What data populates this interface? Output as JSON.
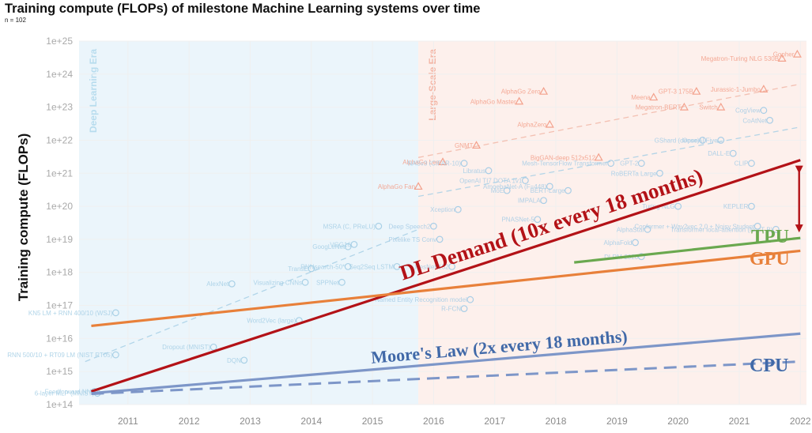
{
  "header": {
    "title": "Training compute (FLOPs) of milestone Machine Learning systems over time",
    "subtitle": "n = 102"
  },
  "chart_data": {
    "type": "scatter",
    "title": "Training compute (FLOPs) of milestone Machine Learning systems over time",
    "ylabel": "Training compute (FLOPs)",
    "xlabel": "",
    "y_scale": "log",
    "xlim": [
      2010.2,
      2022.1
    ],
    "ylim": [
      100000000000000.0,
      1e+25
    ],
    "x_ticks": [
      "2011",
      "2012",
      "2013",
      "2014",
      "2015",
      "2016",
      "2017",
      "2018",
      "2019",
      "2020",
      "2021",
      "2022"
    ],
    "y_ticks": [
      "1e+14",
      "1e+15",
      "1e+16",
      "1e+17",
      "1e+18",
      "1e+19",
      "1e+20",
      "1e+21",
      "1e+22",
      "1e+23",
      "1e+24",
      "1e+25"
    ],
    "eras": [
      {
        "name": "Deep Learning Era",
        "x_start": 2010.2,
        "x_end": 2015.75,
        "color": "#ebf5fb"
      },
      {
        "name": "Large-Scale Era",
        "x_start": 2015.75,
        "x_end": 2022.1,
        "color": "#fdf0ec"
      }
    ],
    "trend_lines": [
      {
        "label": "DL Demand (10x every 18 months)",
        "color": "#b31217",
        "style": "solid",
        "points": [
          [
            2010.4,
            250000000000000.0
          ],
          [
            2022,
            2.5e+21
          ]
        ]
      },
      {
        "label": "GPU",
        "color": "#e8803a",
        "style": "solid",
        "points": [
          [
            2010.4,
            2.4e+16
          ],
          [
            2022,
            4.5e+18
          ]
        ]
      },
      {
        "label": "TPU",
        "color": "#6aa84f",
        "style": "solid",
        "points": [
          [
            2018.3,
            2e+18
          ],
          [
            2022,
            1.1e+19
          ]
        ]
      },
      {
        "label": "Moore's Law (2x every 18 months)",
        "color": "#7d96c8",
        "style": "solid",
        "points": [
          [
            2010.4,
            220000000000000.0
          ],
          [
            2022,
            1.4e+16
          ]
        ]
      },
      {
        "label": "CPU",
        "color": "#7d96c8",
        "style": "dashed",
        "points": [
          [
            2010.4,
            210000000000000.0
          ],
          [
            2022,
            2000000000000000.0
          ]
        ]
      }
    ],
    "annotations": [
      {
        "text": "DL Demand (10x every 18 months)",
        "color": "#b31217"
      },
      {
        "text": "Moore's Law (2x every 18 months)",
        "color": "#4169a8"
      },
      {
        "text": "TPU",
        "color": "#6aa84f"
      },
      {
        "text": "GPU",
        "color": "#e8803a"
      },
      {
        "text": "CPU",
        "color": "#4169a8"
      }
    ],
    "background_trends": [
      {
        "color": "#a8d0e6",
        "points": [
          [
            2010.3,
            2000000000000000.0
          ],
          [
            2015.75,
            2e+19
          ]
        ]
      },
      {
        "color": "#a8d0e6",
        "points": [
          [
            2015.75,
            2e+20
          ],
          [
            2022,
            2.5e+22
          ]
        ]
      },
      {
        "color": "#f2b8a8",
        "points": [
          [
            2015.75,
            3e+21
          ],
          [
            2022,
            5e+23
          ]
        ]
      }
    ],
    "systems_dl": [
      {
        "x": 2010.45,
        "y": 250000000000000.0,
        "label": "Feedforward NN"
      },
      {
        "x": 2010.5,
        "y": 220000000000000.0,
        "label": "6-layer MLP (MNIST)"
      },
      {
        "x": 2010.8,
        "y": 6e+16,
        "label": "KN5 LM + RNN 400/10 (WSJ)"
      },
      {
        "x": 2010.8,
        "y": 3200000000000000.0,
        "label": "RNN 500/10 + RT09 LM (NIST RT05)"
      },
      {
        "x": 2012.4,
        "y": 5500000000000000.0,
        "label": "Dropout (MNIST)"
      },
      {
        "x": 2012.7,
        "y": 4.5e+17,
        "label": "AlexNet"
      },
      {
        "x": 2012.9,
        "y": 2200000000000000.0,
        "label": "DQN"
      },
      {
        "x": 2013.8,
        "y": 3.5e+16,
        "label": "Word2Vec (large)"
      },
      {
        "x": 2013.9,
        "y": 5e+17,
        "label": "Visualizing CNNs"
      },
      {
        "x": 2014.0,
        "y": 1.3e+18,
        "label": "TransE"
      },
      {
        "x": 2014.5,
        "y": 5e+17,
        "label": "SPPNet"
      },
      {
        "x": 2014.6,
        "y": 6e+18,
        "label": "GoogLeNet"
      },
      {
        "x": 2014.7,
        "y": 7e+18,
        "label": "VGG16"
      },
      {
        "x": 2014.6,
        "y": 1.5e+18,
        "label": "RNNsearch-50*"
      },
      {
        "x": 2015.1,
        "y": 2.5e+19,
        "label": "MSRA (C, PReLU)"
      },
      {
        "x": 2015.4,
        "y": 1.5e+18,
        "label": "Seq2Seq LSTM"
      }
    ],
    "systems_ls": [
      {
        "x": 2015.75,
        "y": 4e+20,
        "label": "AlphaGo Fan",
        "shape": "triangle"
      },
      {
        "x": 2016.15,
        "y": 2.2e+21,
        "label": "AlphaGo Lee",
        "shape": "triangle"
      },
      {
        "x": 2016.7,
        "y": 7e+21,
        "label": "GNMT",
        "shape": "triangle"
      },
      {
        "x": 2017.4,
        "y": 1.5e+23,
        "label": "AlphaGo Master",
        "shape": "triangle"
      },
      {
        "x": 2017.8,
        "y": 3e+23,
        "label": "AlphaGo Zero",
        "shape": "triangle"
      },
      {
        "x": 2017.9,
        "y": 3e+22,
        "label": "AlphaZero",
        "shape": "triangle"
      },
      {
        "x": 2018.7,
        "y": 3e+21,
        "label": "BigGAN-deep 512x512",
        "shape": "triangle"
      },
      {
        "x": 2019.6,
        "y": 2e+23,
        "label": "Meena",
        "shape": "triangle"
      },
      {
        "x": 2020.3,
        "y": 3e+23,
        "label": "GPT-3 175B",
        "shape": "triangle"
      },
      {
        "x": 2021.7,
        "y": 3e+24,
        "label": "Megatron-Turing NLG 530B",
        "shape": "triangle"
      },
      {
        "x": 2021.95,
        "y": 4e+24,
        "label": "Gopher",
        "shape": "triangle"
      },
      {
        "x": 2021.4,
        "y": 3.5e+23,
        "label": "Jurassic-1-Jumbo",
        "shape": "triangle"
      },
      {
        "x": 2020.7,
        "y": 1e+23,
        "label": "Switch",
        "shape": "triangle"
      },
      {
        "x": 2020.1,
        "y": 1e+23,
        "label": "Megatron-BERT",
        "shape": "triangle"
      },
      {
        "x": 2016.5,
        "y": 2e+21,
        "label": "NASv3 (CIFAR-10)",
        "shape": "circle"
      },
      {
        "x": 2016.9,
        "y": 1.2e+21,
        "label": "Libratus",
        "shape": "circle"
      },
      {
        "x": 2017.5,
        "y": 6e+20,
        "label": "OpenAI TI7 DOTA 1v1",
        "shape": "circle"
      },
      {
        "x": 2017.9,
        "y": 4e+20,
        "label": "AmoebaNet-A (F=448)",
        "shape": "circle"
      },
      {
        "x": 2018.2,
        "y": 3e+20,
        "label": "BERT-Large",
        "shape": "circle"
      },
      {
        "x": 2017.8,
        "y": 1.5e+20,
        "label": "IMPALA",
        "shape": "circle"
      },
      {
        "x": 2016.4,
        "y": 8e+19,
        "label": "Xception",
        "shape": "circle"
      },
      {
        "x": 2016.0,
        "y": 2.5e+19,
        "label": "Deep Speech2",
        "shape": "circle"
      },
      {
        "x": 2016.1,
        "y": 1e+19,
        "label": "Pixelike TS Conv",
        "shape": "circle"
      },
      {
        "x": 2016.3,
        "y": 1.5e+18,
        "label": "ResNet-152",
        "shape": "circle"
      },
      {
        "x": 2016.6,
        "y": 1.5e+17,
        "label": "Named Entity Recognition model",
        "shape": "circle"
      },
      {
        "x": 2016.5,
        "y": 8e+16,
        "label": "R-FCN",
        "shape": "circle"
      },
      {
        "x": 2017.2,
        "y": 3e+20,
        "label": "MoE",
        "shape": "circle"
      },
      {
        "x": 2017.7,
        "y": 4e+19,
        "label": "PNASNet-5",
        "shape": "circle"
      },
      {
        "x": 2018.9,
        "y": 2e+21,
        "label": "Mesh-TensorFlow Transformer",
        "shape": "circle"
      },
      {
        "x": 2019.4,
        "y": 2e+21,
        "label": "GPT-2",
        "shape": "circle"
      },
      {
        "x": 2019.7,
        "y": 1e+21,
        "label": "RoBERTa Large",
        "shape": "circle"
      },
      {
        "x": 2020.4,
        "y": 1e+22,
        "label": "GShard (dense)",
        "shape": "circle"
      },
      {
        "x": 2020.7,
        "y": 1e+22,
        "label": "OpenAI Five",
        "shape": "circle"
      },
      {
        "x": 2020.9,
        "y": 4e+21,
        "label": "DALL-E",
        "shape": "circle"
      },
      {
        "x": 2021.2,
        "y": 2e+21,
        "label": "CLIP",
        "shape": "circle"
      },
      {
        "x": 2021.5,
        "y": 4e+22,
        "label": "CoAtNet",
        "shape": "circle"
      },
      {
        "x": 2021.4,
        "y": 8e+22,
        "label": "CogView",
        "shape": "circle"
      },
      {
        "x": 2021.2,
        "y": 1e+20,
        "label": "KEPLER",
        "shape": "circle"
      },
      {
        "x": 2020.0,
        "y": 1e+20,
        "label": "Turing-NLG",
        "shape": "circle"
      },
      {
        "x": 2019.5,
        "y": 2e+19,
        "label": "AlphaStar",
        "shape": "circle"
      },
      {
        "x": 2019.3,
        "y": 8e+18,
        "label": "AlphaFold",
        "shape": "circle"
      },
      {
        "x": 2019.4,
        "y": 3e+18,
        "label": "DLRM-2020",
        "shape": "circle"
      },
      {
        "x": 2021.3,
        "y": 2.5e+19,
        "label": "Conformer + Wav2vec 2.0 + Noisy Student",
        "shape": "circle"
      },
      {
        "x": 2021.6,
        "y": 2e+19,
        "label": "Transformer local-attention (NesT-B)",
        "shape": "circle"
      }
    ],
    "legend": "none",
    "grid": true
  }
}
